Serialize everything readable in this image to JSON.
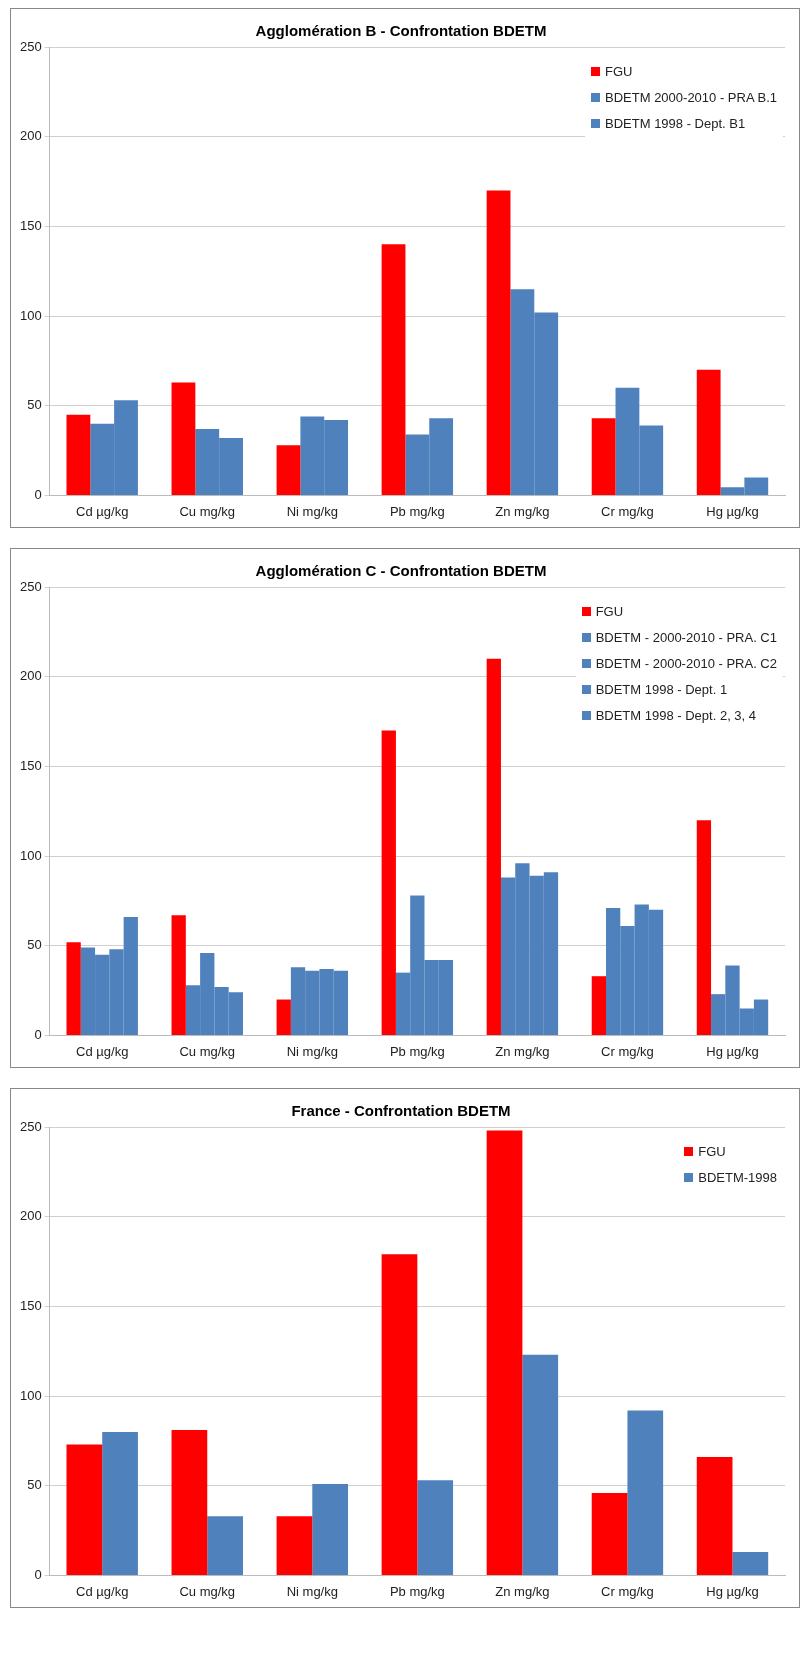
{
  "chart_data": [
    {
      "type": "bar",
      "title": "Agglomération B - Confrontation BDETM",
      "categories": [
        "Cd µg/kg",
        "Cu mg/kg",
        "Ni mg/kg",
        "Pb mg/kg",
        "Zn mg/kg",
        "Cr mg/kg",
        "Hg µg/kg"
      ],
      "series": [
        {
          "name": "FGU",
          "color": "#ff0000",
          "values": [
            45,
            63,
            28,
            140,
            170,
            43,
            70
          ]
        },
        {
          "name": "BDETM 2000-2010 - PRA B.1",
          "color": "#4f81bd",
          "values": [
            40,
            37,
            44,
            34,
            115,
            60,
            4.5
          ]
        },
        {
          "name": "BDETM 1998 - Dept. B1",
          "color": "#4f81bd",
          "values": [
            53,
            32,
            42,
            43,
            102,
            39,
            10
          ]
        }
      ],
      "ylim": [
        0,
        250
      ],
      "yticks": [
        0,
        50,
        100,
        150,
        200,
        250
      ],
      "grid": "y",
      "legend": "top right"
    },
    {
      "type": "bar",
      "title": "Agglomération C - Confrontation BDETM",
      "categories": [
        "Cd µg/kg",
        "Cu mg/kg",
        "Ni mg/kg",
        "Pb mg/kg",
        "Zn mg/kg",
        "Cr mg/kg",
        "Hg µg/kg"
      ],
      "series": [
        {
          "name": "FGU",
          "color": "#ff0000",
          "values": [
            52,
            67,
            20,
            170,
            210,
            33,
            120
          ]
        },
        {
          "name": "BDETM - 2000-2010 - PRA. C1",
          "color": "#4f81bd",
          "values": [
            49,
            28,
            38,
            35,
            88,
            71,
            23
          ]
        },
        {
          "name": "BDETM - 2000-2010 - PRA. C2",
          "color": "#4f81bd",
          "values": [
            45,
            46,
            36,
            78,
            96,
            61,
            39
          ]
        },
        {
          "name": "BDETM 1998 - Dept. 1",
          "color": "#4f81bd",
          "values": [
            48,
            27,
            37,
            42,
            89,
            73,
            15
          ]
        },
        {
          "name": "BDETM 1998 - Dept. 2, 3, 4",
          "color": "#4f81bd",
          "values": [
            66,
            24,
            36,
            42,
            91,
            70,
            20
          ]
        }
      ],
      "ylim": [
        0,
        250
      ],
      "yticks": [
        0,
        50,
        100,
        150,
        200,
        250
      ],
      "grid": "y",
      "legend": "top right"
    },
    {
      "type": "bar",
      "title": "France - Confrontation BDETM",
      "categories": [
        "Cd µg/kg",
        "Cu mg/kg",
        "Ni mg/kg",
        "Pb mg/kg",
        "Zn mg/kg",
        "Cr mg/kg",
        "Hg µg/kg"
      ],
      "series": [
        {
          "name": "FGU",
          "color": "#ff0000",
          "values": [
            73,
            81,
            33,
            179,
            248,
            46,
            66
          ]
        },
        {
          "name": "BDETM-1998",
          "color": "#4f81bd",
          "values": [
            80,
            33,
            51,
            53,
            123,
            92,
            13
          ]
        }
      ],
      "ylim": [
        0,
        250
      ],
      "yticks": [
        0,
        50,
        100,
        150,
        200,
        250
      ],
      "grid": "y",
      "legend": "top right"
    }
  ]
}
